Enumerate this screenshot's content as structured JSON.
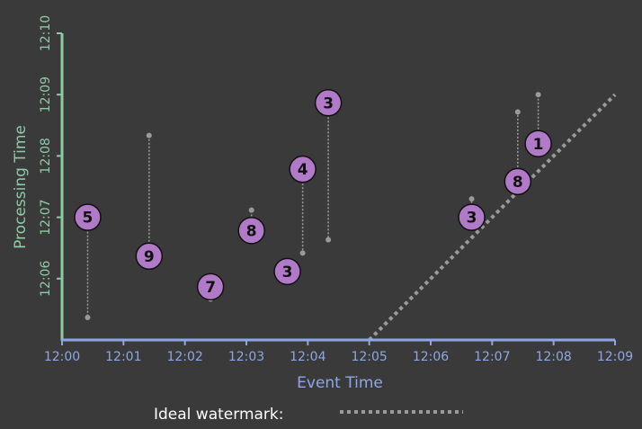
{
  "colors": {
    "background": "#3a3a3a",
    "x_axis": "#8ea6e6",
    "y_axis": "#8fc9a6",
    "marker_fill": "#b07ac8",
    "marker_stroke": "#111111",
    "stem": "#9a9a9a",
    "watermark": "#9a9a9a",
    "legend_text": "#ffffff"
  },
  "chart_data": {
    "type": "scatter",
    "xlabel": "Event Time",
    "ylabel": "Processing Time",
    "x_ticks": [
      "12:00",
      "12:01",
      "12:02",
      "12:03",
      "12:04",
      "12:05",
      "12:06",
      "12:07",
      "12:08",
      "12:09"
    ],
    "y_ticks": [
      "12:06",
      "12:07",
      "12:08",
      "12:09",
      "12:10"
    ],
    "xlim": [
      "12:00",
      "12:09"
    ],
    "ylim": [
      "12:05",
      "12:10"
    ],
    "grid": false,
    "points": [
      {
        "label": "5",
        "event_time": "12:00:25",
        "processing_time": "12:07:00",
        "stem_start": "12:05:22"
      },
      {
        "label": "9",
        "event_time": "12:01:25",
        "processing_time": "12:06:22",
        "stem_start": "12:08:20"
      },
      {
        "label": "7",
        "event_time": "12:02:25",
        "processing_time": "12:05:52",
        "stem_start": "12:05:40"
      },
      {
        "label": "8",
        "event_time": "12:03:05",
        "processing_time": "12:06:47",
        "stem_start": "12:07:07"
      },
      {
        "label": "3",
        "event_time": "12:03:40",
        "processing_time": "12:06:07",
        "stem_start": "12:06:07"
      },
      {
        "label": "4",
        "event_time": "12:03:55",
        "processing_time": "12:07:47",
        "stem_start": "12:06:25"
      },
      {
        "label": "3",
        "event_time": "12:04:20",
        "processing_time": "12:08:52",
        "stem_start": "12:06:38"
      },
      {
        "label": "3",
        "event_time": "12:06:40",
        "processing_time": "12:07:00",
        "stem_start": "12:07:18"
      },
      {
        "label": "8",
        "event_time": "12:07:25",
        "processing_time": "12:07:35",
        "stem_start": "12:08:43"
      },
      {
        "label": "1",
        "event_time": "12:07:45",
        "processing_time": "12:08:12",
        "stem_start": "12:09:00"
      }
    ],
    "watermark": {
      "from": [
        "12:05",
        "12:05"
      ],
      "to": [
        "12:09",
        "12:09"
      ]
    },
    "legend": {
      "label": "Ideal watermark:",
      "position": "bottom"
    }
  }
}
